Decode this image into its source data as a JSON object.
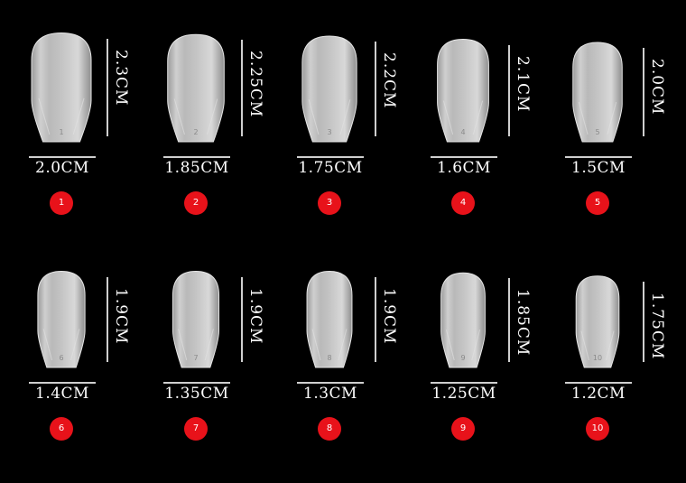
{
  "colors": {
    "background": "#000000",
    "badge": "#e8121a",
    "nail": "#c9c9c9",
    "lines": "#cfcfcf"
  },
  "sizes": [
    {
      "number": "1",
      "width": "2.0CM",
      "length": "2.3CM"
    },
    {
      "number": "2",
      "width": "1.85CM",
      "length": "2.25CM"
    },
    {
      "number": "3",
      "width": "1.75CM",
      "length": "2.2CM"
    },
    {
      "number": "4",
      "width": "1.6CM",
      "length": "2.1CM"
    },
    {
      "number": "5",
      "width": "1.5CM",
      "length": "2.0CM"
    },
    {
      "number": "6",
      "width": "1.4CM",
      "length": "1.9CM"
    },
    {
      "number": "7",
      "width": "1.35CM",
      "length": "1.9CM"
    },
    {
      "number": "8",
      "width": "1.3CM",
      "length": "1.9CM"
    },
    {
      "number": "9",
      "width": "1.25CM",
      "length": "1.85CM"
    },
    {
      "number": "10",
      "width": "1.2CM",
      "length": "1.75CM"
    }
  ]
}
